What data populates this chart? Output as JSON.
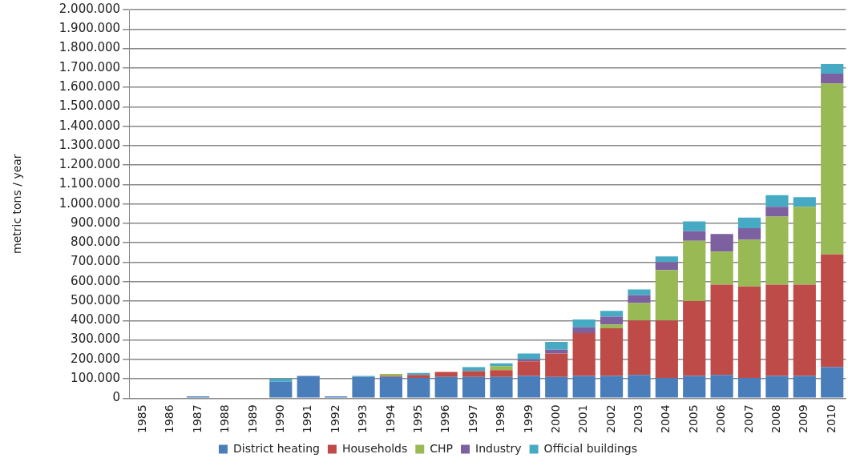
{
  "chart_data": {
    "type": "bar",
    "stacked": true,
    "ylabel": "metric tons / year",
    "categories": [
      "1985",
      "1986",
      "1987",
      "1988",
      "1989",
      "1990",
      "1991",
      "1992",
      "1993",
      "1994",
      "1995",
      "1996",
      "1997",
      "1998",
      "1999",
      "2000",
      "2001",
      "2002",
      "2003",
      "2004",
      "2005",
      "2006",
      "2007",
      "2008",
      "2009",
      "2010"
    ],
    "series": [
      {
        "name": "District heating",
        "color": "#4a7ebb",
        "values": [
          0,
          0,
          10000,
          0,
          0,
          85000,
          115000,
          10000,
          110000,
          110000,
          105000,
          110000,
          110000,
          110000,
          115000,
          110000,
          115000,
          115000,
          120000,
          105000,
          115000,
          120000,
          105000,
          115000,
          115000,
          160000
        ]
      },
      {
        "name": "Households",
        "color": "#be4b48",
        "values": [
          0,
          0,
          0,
          0,
          0,
          0,
          0,
          0,
          0,
          5000,
          15000,
          25000,
          30000,
          35000,
          75000,
          120000,
          220000,
          245000,
          280000,
          295000,
          385000,
          465000,
          470000,
          470000,
          470000,
          580000
        ]
      },
      {
        "name": "CHP",
        "color": "#98b954",
        "values": [
          0,
          0,
          0,
          0,
          0,
          0,
          0,
          0,
          0,
          10000,
          0,
          0,
          0,
          20000,
          0,
          0,
          0,
          20000,
          90000,
          260000,
          310000,
          170000,
          240000,
          350000,
          400000,
          880000
        ]
      },
      {
        "name": "Industry",
        "color": "#7d60a0",
        "values": [
          0,
          0,
          0,
          0,
          0,
          0,
          0,
          0,
          0,
          0,
          0,
          0,
          0,
          0,
          10000,
          20000,
          30000,
          40000,
          40000,
          40000,
          50000,
          90000,
          60000,
          50000,
          0,
          50000
        ]
      },
      {
        "name": "Official buildings",
        "color": "#46aac5",
        "values": [
          0,
          0,
          0,
          0,
          0,
          15000,
          0,
          0,
          5000,
          0,
          10000,
          0,
          20000,
          15000,
          30000,
          40000,
          40000,
          30000,
          30000,
          30000,
          50000,
          0,
          55000,
          60000,
          50000,
          50000
        ]
      }
    ],
    "ylim": [
      0,
      2000000
    ],
    "yticks": [
      {
        "value": 0,
        "label": "0"
      },
      {
        "value": 100000,
        "label": "100.000"
      },
      {
        "value": 200000,
        "label": "200.000"
      },
      {
        "value": 300000,
        "label": "300.000"
      },
      {
        "value": 400000,
        "label": "400.000"
      },
      {
        "value": 500000,
        "label": "500.000"
      },
      {
        "value": 600000,
        "label": "600.000"
      },
      {
        "value": 700000,
        "label": "700.000"
      },
      {
        "value": 800000,
        "label": "800.000"
      },
      {
        "value": 900000,
        "label": "900.000"
      },
      {
        "value": 1000000,
        "label": "1.000.000"
      },
      {
        "value": 1100000,
        "label": "1.100.000"
      },
      {
        "value": 1200000,
        "label": "1.200.000"
      },
      {
        "value": 1300000,
        "label": "1.300.000"
      },
      {
        "value": 1400000,
        "label": "1.400.000"
      },
      {
        "value": 1500000,
        "label": "1.500.000"
      },
      {
        "value": 1600000,
        "label": "1.600.000"
      },
      {
        "value": 1700000,
        "label": "1.700.000"
      },
      {
        "value": 1800000,
        "label": "1.800.000"
      },
      {
        "value": 1900000,
        "label": "1.900.000"
      },
      {
        "value": 2000000,
        "label": "2.000.000"
      }
    ],
    "grid": "y",
    "legend": "bottom"
  }
}
